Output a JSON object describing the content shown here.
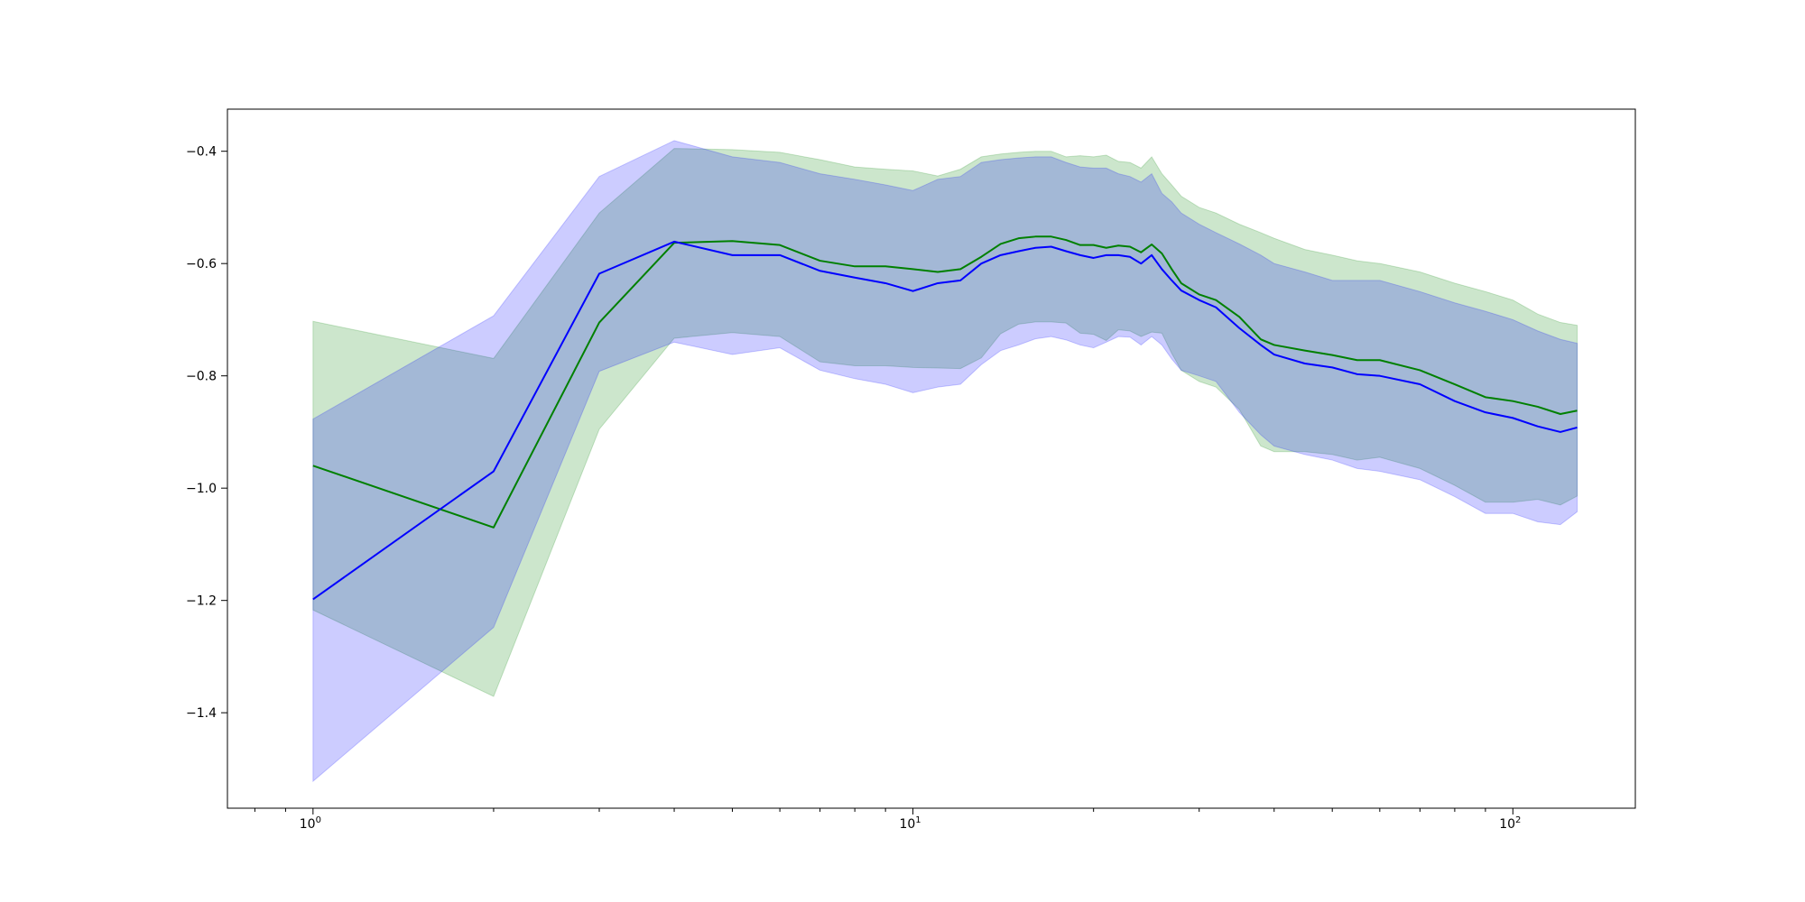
{
  "chart_data": {
    "type": "line",
    "title": "",
    "xlabel": "",
    "ylabel": "",
    "xscale": "log",
    "xlim": [
      0.72,
      160
    ],
    "ylim": [
      -1.57,
      -0.325
    ],
    "x_ticks": [
      {
        "value": 1,
        "label": "10",
        "exp": "0"
      },
      {
        "value": 10,
        "label": "10",
        "exp": "1"
      },
      {
        "value": 100,
        "label": "10",
        "exp": "2"
      }
    ],
    "y_ticks": [
      {
        "value": -0.4,
        "label": "−0.4"
      },
      {
        "value": -0.6,
        "label": "−0.6"
      },
      {
        "value": -0.8,
        "label": "−0.8"
      },
      {
        "value": -1.0,
        "label": "−1.0"
      },
      {
        "value": -1.2,
        "label": "−1.2"
      },
      {
        "value": -1.4,
        "label": "−1.4"
      }
    ],
    "grid": false,
    "legend": "none",
    "series": [
      {
        "color": "#008000",
        "band_color": "#008000",
        "band_opacity": 0.2,
        "x": [
          1,
          2,
          3,
          4,
          5,
          6,
          7,
          8,
          9,
          10,
          11,
          12,
          13,
          14,
          15,
          16,
          17,
          18,
          19,
          20,
          21,
          22,
          23,
          24,
          25,
          26,
          27,
          28,
          30,
          32,
          35,
          38,
          40,
          45,
          50,
          55,
          60,
          70,
          80,
          90,
          100,
          110,
          120,
          128
        ],
        "y": [
          -0.96,
          -1.07,
          -0.705,
          -0.563,
          -0.56,
          -0.567,
          -0.595,
          -0.605,
          -0.605,
          -0.61,
          -0.615,
          -0.61,
          -0.588,
          -0.565,
          -0.555,
          -0.552,
          -0.552,
          -0.558,
          -0.567,
          -0.567,
          -0.572,
          -0.568,
          -0.57,
          -0.58,
          -0.566,
          -0.582,
          -0.61,
          -0.635,
          -0.655,
          -0.665,
          -0.695,
          -0.735,
          -0.745,
          -0.755,
          -0.763,
          -0.772,
          -0.772,
          -0.79,
          -0.815,
          -0.838,
          -0.845,
          -0.855,
          -0.868,
          -0.862
        ],
        "upper": [
          -0.703,
          -0.769,
          -0.51,
          -0.395,
          -0.397,
          -0.402,
          -0.415,
          -0.428,
          -0.432,
          -0.435,
          -0.444,
          -0.432,
          -0.41,
          -0.405,
          -0.402,
          -0.4,
          -0.4,
          -0.41,
          -0.408,
          -0.41,
          -0.407,
          -0.418,
          -0.42,
          -0.43,
          -0.41,
          -0.44,
          -0.46,
          -0.48,
          -0.5,
          -0.51,
          -0.53,
          -0.545,
          -0.555,
          -0.575,
          -0.585,
          -0.595,
          -0.6,
          -0.615,
          -0.635,
          -0.65,
          -0.665,
          -0.69,
          -0.705,
          -0.71
        ],
        "lower": [
          -1.217,
          -1.371,
          -0.895,
          -0.733,
          -0.723,
          -0.73,
          -0.775,
          -0.782,
          -0.782,
          -0.785,
          -0.786,
          -0.787,
          -0.768,
          -0.725,
          -0.708,
          -0.704,
          -0.704,
          -0.706,
          -0.724,
          -0.726,
          -0.737,
          -0.718,
          -0.72,
          -0.73,
          -0.722,
          -0.724,
          -0.76,
          -0.79,
          -0.81,
          -0.82,
          -0.86,
          -0.925,
          -0.935,
          -0.935,
          -0.94,
          -0.95,
          -0.945,
          -0.965,
          -0.995,
          -1.025,
          -1.025,
          -1.02,
          -1.03,
          -1.014
        ]
      },
      {
        "color": "#0000ff",
        "band_color": "#0000ff",
        "band_opacity": 0.2,
        "x": [
          1,
          2,
          3,
          4,
          5,
          6,
          7,
          8,
          9,
          10,
          11,
          12,
          13,
          14,
          15,
          16,
          17,
          18,
          19,
          20,
          21,
          22,
          23,
          24,
          25,
          26,
          27,
          28,
          30,
          32,
          35,
          38,
          40,
          45,
          50,
          55,
          60,
          70,
          80,
          90,
          100,
          110,
          120,
          128
        ],
        "y": [
          -1.198,
          -0.97,
          -0.618,
          -0.561,
          -0.585,
          -0.585,
          -0.613,
          -0.625,
          -0.635,
          -0.649,
          -0.635,
          -0.63,
          -0.6,
          -0.585,
          -0.578,
          -0.572,
          -0.57,
          -0.578,
          -0.585,
          -0.59,
          -0.585,
          -0.585,
          -0.588,
          -0.6,
          -0.585,
          -0.61,
          -0.63,
          -0.648,
          -0.665,
          -0.678,
          -0.715,
          -0.745,
          -0.762,
          -0.778,
          -0.785,
          -0.797,
          -0.8,
          -0.815,
          -0.845,
          -0.865,
          -0.875,
          -0.89,
          -0.9,
          -0.892
        ],
        "upper": [
          -0.877,
          -0.693,
          -0.445,
          -0.381,
          -0.41,
          -0.42,
          -0.44,
          -0.45,
          -0.46,
          -0.47,
          -0.45,
          -0.445,
          -0.42,
          -0.415,
          -0.412,
          -0.41,
          -0.41,
          -0.42,
          -0.428,
          -0.43,
          -0.43,
          -0.44,
          -0.445,
          -0.455,
          -0.44,
          -0.475,
          -0.49,
          -0.51,
          -0.53,
          -0.545,
          -0.565,
          -0.585,
          -0.6,
          -0.615,
          -0.63,
          -0.63,
          -0.63,
          -0.65,
          -0.67,
          -0.685,
          -0.7,
          -0.72,
          -0.735,
          -0.742
        ],
        "lower": [
          -1.522,
          -1.248,
          -0.792,
          -0.74,
          -0.762,
          -0.75,
          -0.79,
          -0.805,
          -0.815,
          -0.83,
          -0.82,
          -0.815,
          -0.78,
          -0.755,
          -0.745,
          -0.734,
          -0.73,
          -0.736,
          -0.745,
          -0.75,
          -0.74,
          -0.73,
          -0.731,
          -0.745,
          -0.73,
          -0.745,
          -0.77,
          -0.79,
          -0.8,
          -0.81,
          -0.865,
          -0.905,
          -0.925,
          -0.94,
          -0.95,
          -0.965,
          -0.97,
          -0.985,
          -1.015,
          -1.045,
          -1.045,
          -1.06,
          -1.065,
          -1.042
        ]
      }
    ]
  }
}
